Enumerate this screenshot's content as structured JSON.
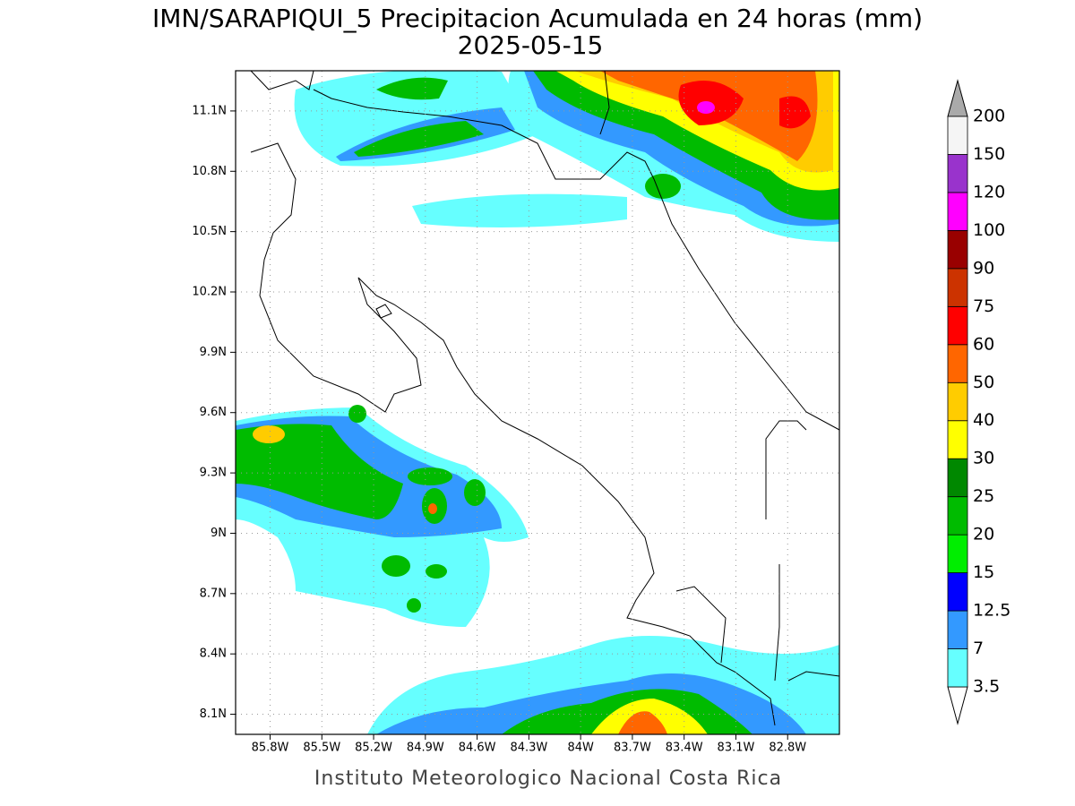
{
  "title": "IMN/SARAPIQUI_5 Precipitacion Acumulada en 24 horas (mm)",
  "subtitle": "2025-05-15",
  "footer": "Instituto Meteorologico Nacional Costa Rica",
  "map": {
    "xlim": [
      -86.0,
      -82.5
    ],
    "ylim": [
      8.0,
      11.3
    ],
    "grid": true,
    "xticks": [
      {
        "value": -85.8,
        "label": "85.8W"
      },
      {
        "value": -85.5,
        "label": "85.5W"
      },
      {
        "value": -85.2,
        "label": "85.2W"
      },
      {
        "value": -84.9,
        "label": "84.9W"
      },
      {
        "value": -84.6,
        "label": "84.6W"
      },
      {
        "value": -84.3,
        "label": "84.3W"
      },
      {
        "value": -84.0,
        "label": "84W"
      },
      {
        "value": -83.7,
        "label": "83.7W"
      },
      {
        "value": -83.4,
        "label": "83.4W"
      },
      {
        "value": -83.1,
        "label": "83.1W"
      },
      {
        "value": -82.8,
        "label": "82.8W"
      }
    ],
    "yticks": [
      {
        "value": 8.1,
        "label": "8.1N"
      },
      {
        "value": 8.4,
        "label": "8.4N"
      },
      {
        "value": 8.7,
        "label": "8.7N"
      },
      {
        "value": 9.0,
        "label": "9N"
      },
      {
        "value": 9.3,
        "label": "9.3N"
      },
      {
        "value": 9.6,
        "label": "9.6N"
      },
      {
        "value": 9.9,
        "label": "9.9N"
      },
      {
        "value": 10.2,
        "label": "10.2N"
      },
      {
        "value": 10.5,
        "label": "10.5N"
      },
      {
        "value": 10.8,
        "label": "10.8N"
      },
      {
        "value": 11.1,
        "label": "11.1N"
      }
    ]
  },
  "colorbar": {
    "levels": [
      3.5,
      7,
      12.5,
      15,
      20,
      25,
      30,
      40,
      50,
      60,
      75,
      90,
      100,
      120,
      150,
      200
    ],
    "colors": [
      "#66ffff",
      "#3399ff",
      "#0000ff",
      "#00ee00",
      "#00bb00",
      "#008800",
      "#ffff00",
      "#ffcc00",
      "#ff6600",
      "#ff0000",
      "#cc3300",
      "#990000",
      "#ff00ff",
      "#9933cc",
      "#f5f5f5"
    ],
    "under_color": "#ffffff",
    "over_color": "#aaaaaa"
  }
}
